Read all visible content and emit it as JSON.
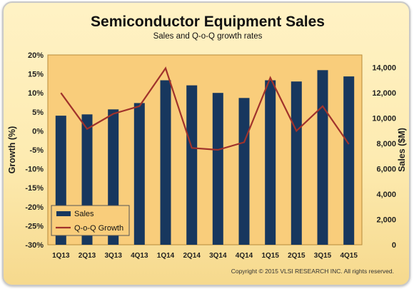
{
  "chart_data": {
    "type": "bar",
    "title": "Semiconductor Equipment Sales",
    "subtitle": "Sales and Q-o-Q growth rates",
    "categories": [
      "1Q13",
      "2Q13",
      "3Q13",
      "4Q13",
      "1Q14",
      "2Q14",
      "3Q14",
      "4Q14",
      "1Q15",
      "2Q15",
      "3Q15",
      "4Q15"
    ],
    "series": [
      {
        "name": "Sales",
        "type": "bar",
        "axis": "right",
        "color": "#17375e",
        "values": [
          10200,
          10300,
          10700,
          11200,
          13000,
          12600,
          12000,
          11600,
          13000,
          12900,
          13800,
          13300
        ]
      },
      {
        "name": "Q-o-Q Growth",
        "type": "line",
        "axis": "left",
        "color": "#a0322b",
        "values": [
          10,
          0.5,
          4.5,
          6.5,
          16.5,
          -4.5,
          -5,
          -3,
          14,
          0,
          6.5,
          -3.5
        ]
      }
    ],
    "y_left": {
      "label": "Growth (%)",
      "range": [
        -30,
        20
      ],
      "ticks": [
        "20%",
        "15%",
        "10%",
        "5%",
        "0%",
        "-5%",
        "-10%",
        "-15%",
        "-20%",
        "-25%",
        "-30%"
      ]
    },
    "y_right": {
      "label": "Sales ($M)",
      "range": [
        0,
        15000
      ],
      "ticks": [
        "14,000",
        "12,000",
        "10,000",
        "8,000",
        "6,000",
        "4,000",
        "2,000",
        "0"
      ]
    },
    "legend": {
      "position": "bottom-left",
      "entries": [
        "Sales",
        "Q-o-Q Growth"
      ]
    },
    "grid": false,
    "plot_background": "#f9cd7b",
    "footer": "Copyright © 2015 VLSI RESEARCH  INC. All rights reserved."
  }
}
